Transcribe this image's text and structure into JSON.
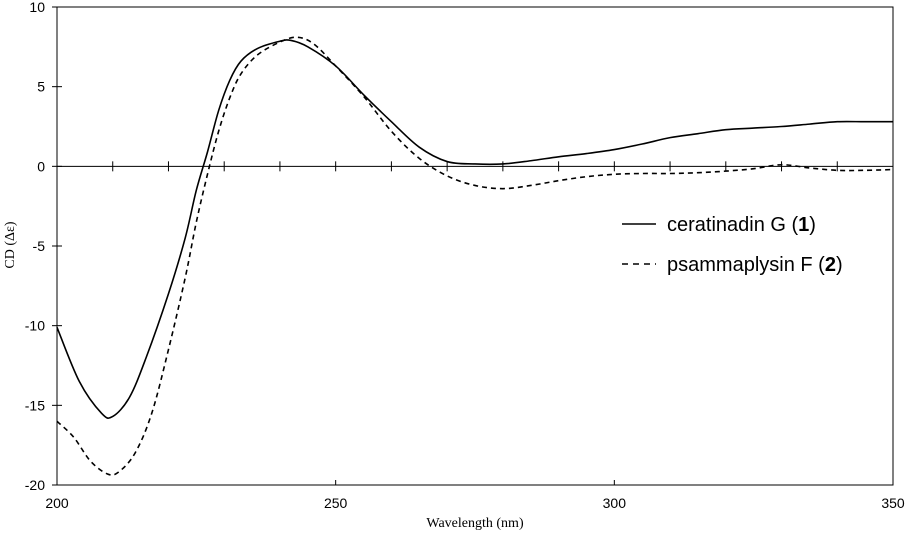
{
  "chart_data": {
    "type": "line",
    "title": "",
    "xlabel": "Wavelength (nm)",
    "ylabel": "CD (Δε)",
    "xlim": [
      200,
      350
    ],
    "ylim": [
      -20,
      10
    ],
    "x_ticks": [
      200,
      250,
      300,
      350
    ],
    "y_ticks": [
      10,
      5,
      0,
      -5,
      -10,
      -15,
      -20
    ],
    "legend_position": "right",
    "series": [
      {
        "name": "ceratinadin G (1)",
        "name_main": "ceratinadin G (",
        "name_num": "1",
        "name_close": ")",
        "style": "solid",
        "color": "#000000",
        "points": [
          [
            200,
            -10.1
          ],
          [
            204,
            -13.5
          ],
          [
            208,
            -15.5
          ],
          [
            210,
            -15.7
          ],
          [
            213,
            -14.5
          ],
          [
            216,
            -12.0
          ],
          [
            220,
            -8.0
          ],
          [
            223,
            -4.5
          ],
          [
            225,
            -1.5
          ],
          [
            227,
            0.9
          ],
          [
            229,
            3.5
          ],
          [
            231,
            5.4
          ],
          [
            233,
            6.6
          ],
          [
            236,
            7.4
          ],
          [
            240,
            7.85
          ],
          [
            242,
            7.9
          ],
          [
            245,
            7.5
          ],
          [
            250,
            6.3
          ],
          [
            255,
            4.5
          ],
          [
            260,
            2.8
          ],
          [
            265,
            1.2
          ],
          [
            270,
            0.3
          ],
          [
            275,
            0.15
          ],
          [
            280,
            0.15
          ],
          [
            285,
            0.35
          ],
          [
            290,
            0.6
          ],
          [
            295,
            0.8
          ],
          [
            300,
            1.05
          ],
          [
            305,
            1.4
          ],
          [
            310,
            1.8
          ],
          [
            315,
            2.05
          ],
          [
            320,
            2.3
          ],
          [
            325,
            2.4
          ],
          [
            330,
            2.5
          ],
          [
            335,
            2.65
          ],
          [
            340,
            2.8
          ],
          [
            345,
            2.8
          ],
          [
            350,
            2.8
          ]
        ]
      },
      {
        "name": "psammaplysin F (2)",
        "name_main": "psammaplysin F (",
        "name_num": "2",
        "name_close": ")",
        "style": "dashed",
        "color": "#000000",
        "points": [
          [
            200,
            -16.0
          ],
          [
            203,
            -17.0
          ],
          [
            206,
            -18.5
          ],
          [
            209,
            -19.3
          ],
          [
            211,
            -19.2
          ],
          [
            214,
            -18.0
          ],
          [
            217,
            -15.5
          ],
          [
            220,
            -11.5
          ],
          [
            223,
            -7.0
          ],
          [
            225,
            -3.5
          ],
          [
            227,
            -0.5
          ],
          [
            229,
            2.2
          ],
          [
            231,
            4.3
          ],
          [
            233,
            5.8
          ],
          [
            236,
            7.0
          ],
          [
            240,
            7.8
          ],
          [
            243,
            8.1
          ],
          [
            246,
            7.7
          ],
          [
            250,
            6.3
          ],
          [
            255,
            4.4
          ],
          [
            260,
            2.2
          ],
          [
            265,
            0.5
          ],
          [
            270,
            -0.6
          ],
          [
            275,
            -1.2
          ],
          [
            280,
            -1.4
          ],
          [
            285,
            -1.2
          ],
          [
            290,
            -0.9
          ],
          [
            295,
            -0.65
          ],
          [
            300,
            -0.5
          ],
          [
            305,
            -0.45
          ],
          [
            310,
            -0.45
          ],
          [
            315,
            -0.4
          ],
          [
            320,
            -0.3
          ],
          [
            325,
            -0.15
          ],
          [
            330,
            0.1
          ],
          [
            335,
            -0.1
          ],
          [
            340,
            -0.25
          ],
          [
            345,
            -0.25
          ],
          [
            350,
            -0.2
          ]
        ]
      }
    ]
  }
}
